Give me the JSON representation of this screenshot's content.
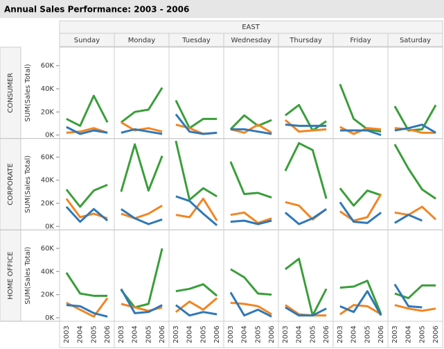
{
  "chart_data": {
    "type": "line",
    "title": "Annual Sales Performance:  2003 - 2006",
    "column_group": "EAST",
    "columns": [
      "Sunday",
      "Monday",
      "Tuesday",
      "Wednesday",
      "Thursday",
      "Friday",
      "Saturday"
    ],
    "y_label": "SUM(Sales Total)",
    "x": [
      "2003",
      "2004",
      "2005",
      "2006"
    ],
    "ylim": [
      -3000,
      76000
    ],
    "yticks": [
      {
        "value": 0,
        "label": "0K"
      },
      {
        "value": 20000,
        "label": "20K"
      },
      {
        "value": 40000,
        "label": "40K"
      },
      {
        "value": 60000,
        "label": "60K"
      }
    ],
    "grid": false,
    "series_colors": [
      "#3a9e3a",
      "#f28522",
      "#2e78b8"
    ],
    "rows": [
      {
        "label": "CONSUMER",
        "cells": [
          {
            "series": [
              {
                "values": [
                  14000,
                  8000,
                  34000,
                  11000
                ]
              },
              {
                "values": [
                  2000,
                  3000,
                  6000,
                  2000
                ]
              },
              {
                "values": [
                  7000,
                  1000,
                  4000,
                  2000
                ]
              }
            ]
          },
          {
            "series": [
              {
                "values": [
                  11000,
                  20000,
                  22000,
                  41000
                ]
              },
              {
                "values": [
                  11000,
                  4000,
                  6000,
                  3000
                ]
              },
              {
                "values": [
                  2000,
                  5000,
                  3000,
                  1000
                ]
              }
            ]
          },
          {
            "series": [
              {
                "values": [
                  30000,
                  6000,
                  14000,
                  14000
                ]
              },
              {
                "values": [
                  9000,
                  6000,
                  1000,
                  2000
                ]
              },
              {
                "values": [
                  18000,
                  3000,
                  1000,
                  2000
                ]
              }
            ]
          },
          {
            "series": [
              {
                "values": [
                  5000,
                  17000,
                  8000,
                  13000
                ]
              },
              {
                "values": [
                  5000,
                  2000,
                  9000,
                  2000
                ]
              },
              {
                "values": [
                  5000,
                  5000,
                  3000,
                  1000
                ]
              }
            ]
          },
          {
            "series": [
              {
                "values": [
                  17000,
                  26000,
                  4000,
                  12000
                ]
              },
              {
                "values": [
                  13000,
                  3000,
                  4000,
                  5000
                ]
              },
              {
                "values": [
                  9000,
                  8000,
                  8000,
                  8000
                ]
              }
            ]
          },
          {
            "series": [
              {
                "values": [
                  44000,
                  14000,
                  5000,
                  3000
                ]
              },
              {
                "values": [
                  7000,
                  1000,
                  6000,
                  5000
                ]
              },
              {
                "values": [
                  4000,
                  4000,
                  4000,
                  0
                ]
              }
            ]
          },
          {
            "series": [
              {
                "values": [
                  25000,
                  4000,
                  5000,
                  26000
                ]
              },
              {
                "values": [
                  6000,
                  5000,
                  2000,
                  2000
                ]
              },
              {
                "values": [
                  4000,
                  6000,
                  9000,
                  2000
                ]
              }
            ]
          }
        ]
      },
      {
        "label": "CORPORATE",
        "cells": [
          {
            "series": [
              {
                "values": [
                  32000,
                  17000,
                  31000,
                  36000
                ]
              },
              {
                "values": [
                  24000,
                  8000,
                  11000,
                  7000
                ]
              },
              {
                "values": [
                  17000,
                  4000,
                  15000,
                  5000
                ]
              }
            ]
          },
          {
            "series": [
              {
                "values": [
                  30000,
                  71000,
                  31000,
                  61000
                ]
              },
              {
                "values": [
                  11000,
                  7000,
                  11000,
                  18000
                ]
              },
              {
                "values": [
                  15000,
                  7000,
                  2000,
                  6000
                ]
              }
            ]
          },
          {
            "series": [
              {
                "values": [
                  74000,
                  23000,
                  33000,
                  26000
                ]
              },
              {
                "values": [
                  10000,
                  8000,
                  24000,
                  5000
                ]
              },
              {
                "values": [
                  26000,
                  22000,
                  11000,
                  1000
                ]
              }
            ]
          },
          {
            "series": [
              {
                "values": [
                  56000,
                  28000,
                  29000,
                  25000
                ]
              },
              {
                "values": [
                  10000,
                  12000,
                  3000,
                  7000
                ]
              },
              {
                "values": [
                  4000,
                  5000,
                  2000,
                  5000
                ]
              }
            ]
          },
          {
            "series": [
              {
                "values": [
                  48000,
                  72000,
                  66000,
                  24000
                ]
              },
              {
                "values": [
                  21000,
                  18000,
                  6000,
                  15000
                ]
              },
              {
                "values": [
                  12000,
                  2000,
                  7000,
                  15000
                ]
              }
            ]
          },
          {
            "series": [
              {
                "values": [
                  33000,
                  18000,
                  31000,
                  27000
                ]
              },
              {
                "values": [
                  13000,
                  5000,
                  8000,
                  28000
                ]
              },
              {
                "values": [
                  21000,
                  4000,
                  3000,
                  12000
                ]
              }
            ]
          },
          {
            "series": [
              {
                "values": [
                  71000,
                  50000,
                  32000,
                  24000
                ]
              },
              {
                "values": [
                  12000,
                  10000,
                  17000,
                  6000
                ]
              },
              {
                "values": [
                  3000,
                  10000,
                  5000,
                  null
                ]
              }
            ]
          }
        ]
      },
      {
        "label": "HOME OFFICE",
        "cells": [
          {
            "series": [
              {
                "values": [
                  39000,
                  21000,
                  19000,
                  19000
                ]
              },
              {
                "values": [
                  13000,
                  7000,
                  1000,
                  17000
                ]
              },
              {
                "values": [
                  11000,
                  10000,
                  4000,
                  1000
                ]
              }
            ]
          },
          {
            "series": [
              {
                "values": [
                  24000,
                  9000,
                  12000,
                  60000
                ]
              },
              {
                "values": [
                  12000,
                  9000,
                  6000,
                  9000
                ]
              },
              {
                "values": [
                  25000,
                  4000,
                  5000,
                  11000
                ]
              }
            ]
          },
          {
            "series": [
              {
                "values": [
                  23000,
                  25000,
                  29000,
                  19000
                ]
              },
              {
                "values": [
                  5000,
                  14000,
                  7000,
                  17000
                ]
              },
              {
                "values": [
                  11000,
                  2000,
                  5000,
                  3000
                ]
              }
            ]
          },
          {
            "series": [
              {
                "values": [
                  42000,
                  35000,
                  21000,
                  20000
                ]
              },
              {
                "values": [
                  13000,
                  12000,
                  10000,
                  3000
                ]
              },
              {
                "values": [
                  22000,
                  2000,
                  7000,
                  1000
                ]
              }
            ]
          },
          {
            "series": [
              {
                "values": [
                  42000,
                  51000,
                  2000,
                  25000
                ]
              },
              {
                "values": [
                  11000,
                  3000,
                  2000,
                  2000
                ]
              },
              {
                "values": [
                  9000,
                  2000,
                  2000,
                  8000
                ]
              }
            ]
          },
          {
            "series": [
              {
                "values": [
                  26000,
                  27000,
                  32000,
                  3000
                ]
              },
              {
                "values": [
                  3000,
                  11000,
                  10000,
                  3000
                ]
              },
              {
                "values": [
                  10000,
                  5000,
                  23000,
                  2000
                ]
              }
            ]
          },
          {
            "series": [
              {
                "values": [
                  21000,
                  17000,
                  28000,
                  28000
                ]
              },
              {
                "values": [
                  11000,
                  8000,
                  6000,
                  8000
                ]
              },
              {
                "values": [
                  29000,
                  10000,
                  9000,
                  null
                ]
              }
            ]
          }
        ]
      }
    ]
  }
}
